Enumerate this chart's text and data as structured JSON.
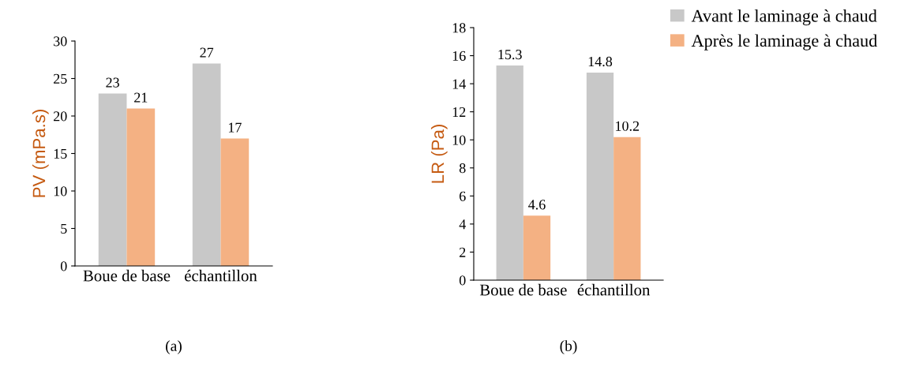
{
  "chart_data": [
    {
      "type": "bar",
      "ylabel": "PV (mPa.s)",
      "categories": [
        "Boue de base",
        "échantillon"
      ],
      "ylim": [
        0,
        30
      ],
      "yticks": [
        0,
        5,
        10,
        15,
        20,
        25,
        30
      ],
      "grid": false,
      "data_labels": true,
      "annotations": [
        "(a)"
      ],
      "series": [
        {
          "color": "#c8c8c8",
          "values": [
            23,
            27
          ]
        },
        {
          "color": "#f4b183",
          "values": [
            21,
            17
          ]
        }
      ]
    },
    {
      "type": "bar",
      "ylabel": "LR (Pa)",
      "categories": [
        "Boue de base",
        "échantillon"
      ],
      "ylim": [
        0,
        18
      ],
      "yticks": [
        0,
        2,
        4,
        6,
        8,
        10,
        12,
        14,
        16,
        18
      ],
      "grid": false,
      "legend": "top right",
      "data_labels": true,
      "annotations": [
        "(b)"
      ],
      "series": [
        {
          "name": "Avant le laminage à chaud",
          "color": "#c8c8c8",
          "values": [
            15.3,
            14.8
          ]
        },
        {
          "name": "Après le laminage à chaud",
          "color": "#f4b183",
          "values": [
            4.6,
            10.2
          ]
        }
      ]
    }
  ]
}
